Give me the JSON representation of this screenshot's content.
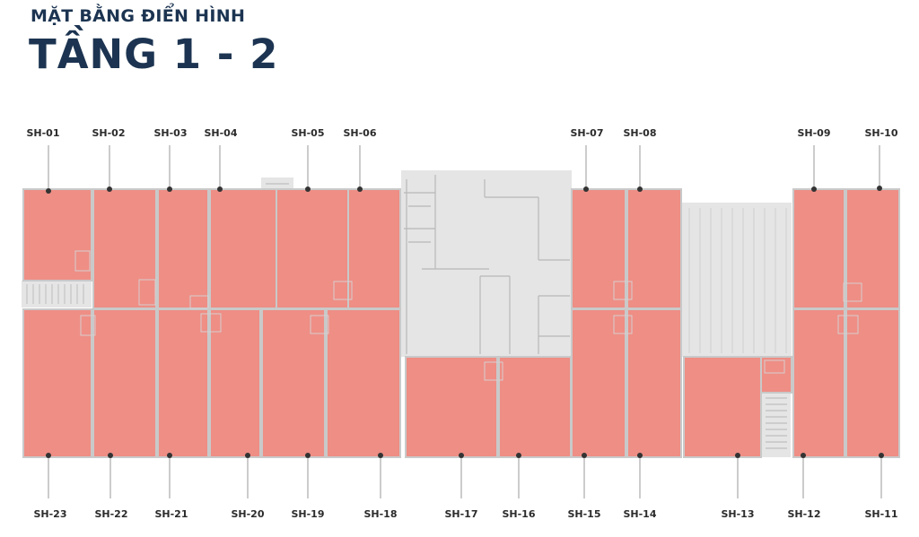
{
  "header": {
    "subtitle": "MẶT BẰNG ĐIỂN HÌNH",
    "title": "TẦNG 1 - 2"
  },
  "colors": {
    "unit": "#ee8e85",
    "core": "#e5e5e5",
    "wall": "#c9c9c9",
    "text": "#1c3451",
    "pin": "#333333"
  },
  "units_top": [
    "SH-01",
    "SH-02",
    "SH-03",
    "SH-04",
    "SH-05",
    "SH-06",
    "SH-07",
    "SH-08",
    "SH-09",
    "SH-10"
  ],
  "units_bottom": [
    "SH-23",
    "SH-22",
    "SH-21",
    "SH-20",
    "SH-19",
    "SH-18",
    "SH-17",
    "SH-16",
    "SH-15",
    "SH-14",
    "SH-13",
    "SH-12",
    "SH-11"
  ]
}
